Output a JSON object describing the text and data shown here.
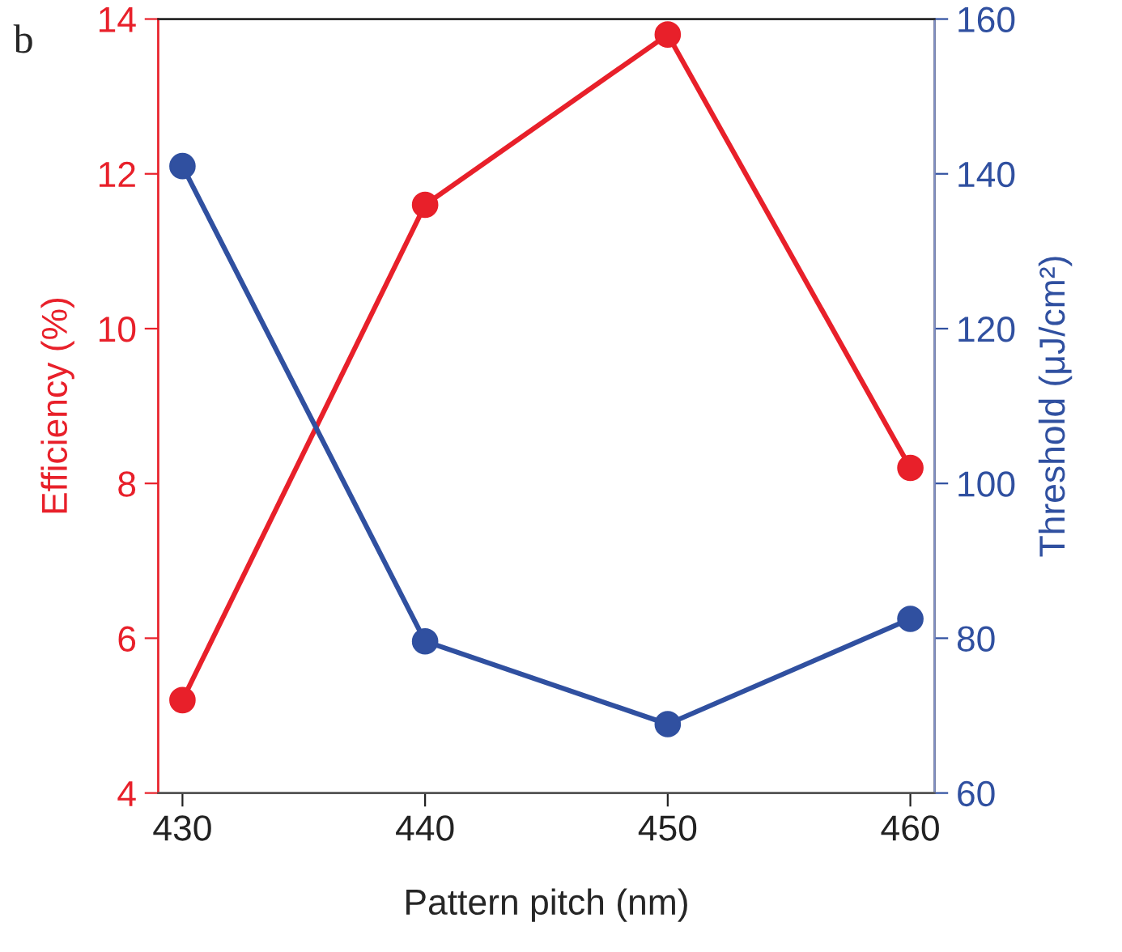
{
  "chart_data": {
    "type": "line",
    "xlabel": "Pattern pitch (nm)",
    "ylabel": "Efficiency (%)",
    "y2label": "Threshold (μJ/cm²)",
    "annotations": [
      "b"
    ],
    "x": [
      430,
      440,
      450,
      460
    ],
    "series": [
      {
        "color": "#e8202a",
        "values": [
          5.2,
          11.6,
          13.8,
          8.2
        ]
      },
      {
        "color": "#3050a0",
        "axis": "y2",
        "values": [
          141,
          79.6,
          68.9,
          82.5
        ]
      }
    ],
    "xlim": [
      429,
      461
    ],
    "xticks": [
      430,
      440,
      450,
      460
    ],
    "ylim": [
      4,
      14
    ],
    "yticks": [
      4,
      6,
      8,
      10,
      12,
      14
    ],
    "y2lim": [
      60,
      160
    ],
    "y2ticks": [
      60,
      80,
      100,
      120,
      140,
      160
    ],
    "marker": "circle",
    "line_style": "solid",
    "grid": false
  }
}
